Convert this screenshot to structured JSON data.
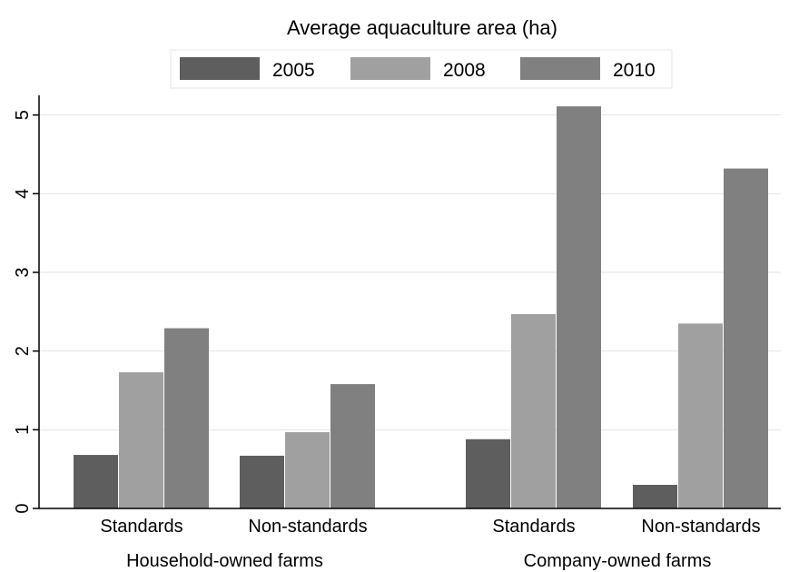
{
  "chart_data": {
    "type": "bar",
    "title": "Average aquaculture area (ha)",
    "xlabel": "",
    "ylabel": "",
    "ylim": [
      0,
      5.25
    ],
    "yticks": [
      "0",
      "1",
      "2",
      "3",
      "4",
      "5"
    ],
    "grid": true,
    "legend_position": "top",
    "groups": [
      {
        "label": "Household-owned farms",
        "categories": [
          "Standards",
          "Non-standards"
        ]
      },
      {
        "label": "Company-owned farms",
        "categories": [
          "Standards",
          "Non-standards"
        ]
      }
    ],
    "categories": [
      "Standards",
      "Non-standards",
      "Standards",
      "Non-standards"
    ],
    "series": [
      {
        "name": "2005",
        "color": "#5e5e5e",
        "values": [
          0.68,
          0.67,
          0.88,
          0.3
        ]
      },
      {
        "name": "2008",
        "color": "#a0a0a0",
        "values": [
          1.73,
          0.97,
          2.47,
          2.35
        ]
      },
      {
        "name": "2010",
        "color": "#808080",
        "values": [
          2.29,
          1.58,
          5.11,
          4.32
        ]
      }
    ]
  }
}
